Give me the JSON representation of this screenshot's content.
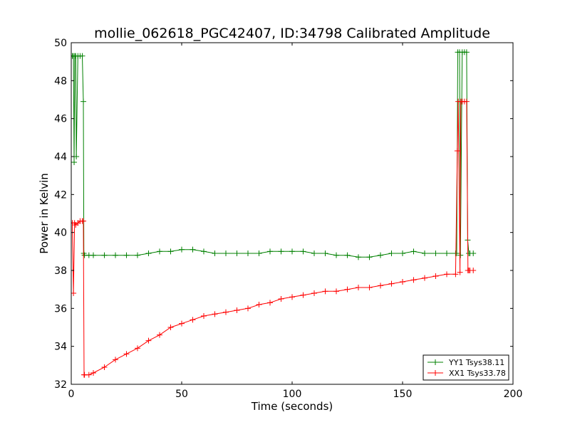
{
  "chart_data": {
    "type": "line",
    "title": "mollie_062618_PGC42407, ID:34798 Calibrated Amplitude",
    "xlabel": "Time (seconds)",
    "ylabel": "Power in Kelvin",
    "xlim": [
      0,
      200
    ],
    "ylim": [
      32,
      50
    ],
    "xticks": [
      0,
      50,
      100,
      150,
      200
    ],
    "yticks": [
      32,
      34,
      36,
      38,
      40,
      42,
      44,
      46,
      48,
      50
    ],
    "grid": false,
    "legend_position": "lower-right",
    "series": [
      {
        "name": "YY1 Tsys38.11",
        "color": "#008000",
        "x": [
          0,
          0.5,
          1,
          1.3,
          1.6,
          2,
          2.3,
          3,
          4,
          5,
          5.5,
          5.7,
          6,
          8,
          10,
          15,
          20,
          25,
          30,
          35,
          40,
          45,
          50,
          55,
          60,
          65,
          70,
          75,
          80,
          85,
          90,
          95,
          100,
          105,
          110,
          115,
          120,
          125,
          130,
          135,
          140,
          145,
          150,
          155,
          160,
          165,
          170,
          174,
          174.5,
          175,
          175.8,
          176.2,
          177,
          178,
          179,
          179.5,
          180,
          180.5,
          182
        ],
        "y": [
          49.3,
          49.3,
          49.3,
          43.7,
          49.3,
          49.3,
          44.0,
          49.3,
          49.3,
          49.3,
          46.9,
          38.9,
          38.8,
          38.8,
          38.8,
          38.8,
          38.8,
          38.8,
          38.8,
          38.9,
          39.0,
          39.0,
          39.1,
          39.1,
          39.0,
          38.9,
          38.9,
          38.9,
          38.9,
          38.9,
          39.0,
          39.0,
          39.0,
          39.0,
          38.9,
          38.9,
          38.8,
          38.8,
          38.7,
          38.7,
          38.8,
          38.9,
          38.9,
          39.0,
          38.9,
          38.9,
          38.9,
          38.9,
          38.9,
          49.5,
          49.5,
          38.8,
          49.5,
          49.5,
          49.5,
          39.6,
          38.9,
          38.9,
          38.9
        ]
      },
      {
        "name": "XX1 Tsys33.78",
        "color": "#ff0000",
        "x": [
          0,
          0.5,
          1,
          1.5,
          2,
          3,
          4,
          5,
          5.5,
          5.8,
          6,
          8,
          10,
          15,
          20,
          25,
          30,
          35,
          40,
          45,
          50,
          55,
          60,
          65,
          70,
          75,
          80,
          85,
          90,
          95,
          100,
          105,
          110,
          115,
          120,
          125,
          130,
          135,
          140,
          145,
          150,
          155,
          160,
          165,
          170,
          174,
          174.8,
          175.2,
          176,
          176.4,
          177,
          178,
          179,
          179.6,
          180,
          180.5,
          182
        ],
        "y": [
          40.5,
          40.5,
          36.8,
          40.5,
          40.4,
          40.5,
          40.6,
          40.6,
          40.6,
          32.5,
          32.5,
          32.5,
          32.6,
          32.9,
          33.3,
          33.6,
          33.9,
          34.3,
          34.6,
          35.0,
          35.2,
          35.4,
          35.6,
          35.7,
          35.8,
          35.9,
          36.0,
          36.2,
          36.3,
          36.5,
          36.6,
          36.7,
          36.8,
          36.9,
          36.9,
          37.0,
          37.1,
          37.1,
          37.2,
          37.3,
          37.4,
          37.5,
          37.6,
          37.7,
          37.8,
          37.8,
          44.3,
          46.9,
          37.9,
          46.9,
          46.9,
          46.9,
          46.9,
          38.0,
          38.0,
          38.0,
          38.0
        ]
      }
    ]
  }
}
